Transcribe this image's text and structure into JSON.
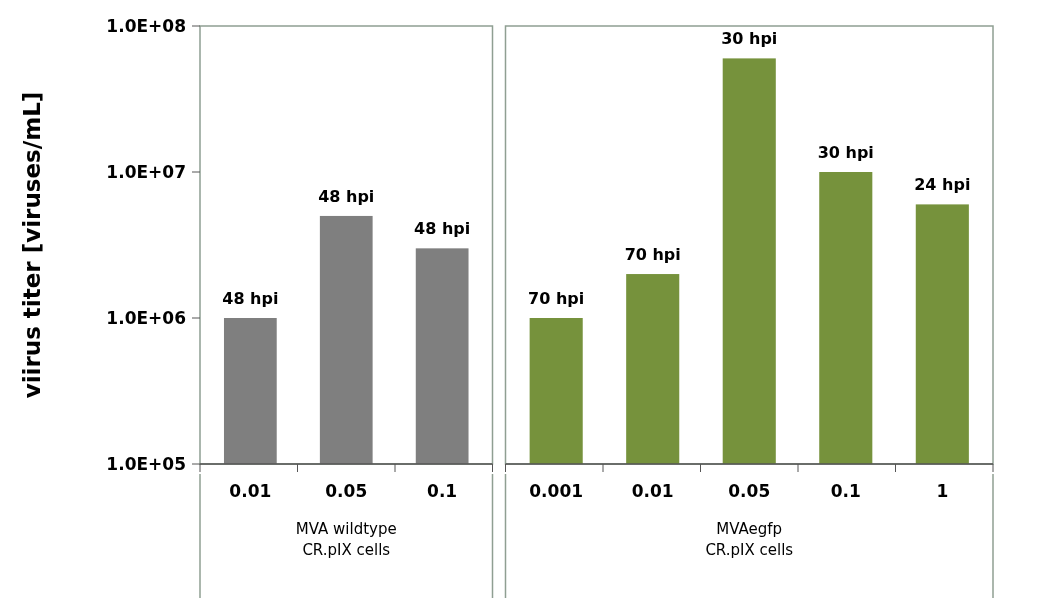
{
  "chart_data": [
    {
      "type": "bar",
      "categories": [
        "0.01",
        "0.05",
        "0.1"
      ],
      "values": [
        1000000,
        5000000,
        3000000
      ],
      "color": "#7f7f7f",
      "log": true,
      "ylim": [
        100000,
        100000000
      ],
      "yticks": [
        {
          "value": 100000,
          "label": "1.0E+05"
        },
        {
          "value": 1000000,
          "label": "1.0E+06"
        },
        {
          "value": 10000000,
          "label": "1.0E+07"
        },
        {
          "value": 100000000,
          "label": "1.0E+08"
        }
      ],
      "ylabel": "viirus titer [viruses/mL]",
      "xlabel": "MVA wildtype\nCR.pIX cells",
      "annotations": [
        {
          "text": "48 hpi",
          "x": "0.01",
          "y": 1000000
        },
        {
          "text": "48 hpi",
          "x": "0.05",
          "y": 5000000
        },
        {
          "text": "48 hpi",
          "x": "0.1",
          "y": 3000000
        }
      ]
    },
    {
      "type": "bar",
      "categories": [
        "0.001",
        "0.01",
        "0.05",
        "0.1",
        "1"
      ],
      "values": [
        1000000,
        2000000,
        60000000,
        10000000,
        6000000
      ],
      "color": "#76923c",
      "log": true,
      "ylim": [
        100000,
        100000000
      ],
      "tick_labels": "x",
      "xlabel": "MVAegfp\nCR.pIX cells",
      "annotations": [
        {
          "text": "70 hpi",
          "x": "0.001",
          "y": 1000000
        },
        {
          "text": "70 hpi",
          "x": "0.01",
          "y": 2000000
        },
        {
          "text": "30 hpi",
          "x": "0.05",
          "y": 60000000
        },
        {
          "text": "30 hpi",
          "x": "0.1",
          "y": 10000000
        },
        {
          "text": "24 hpi",
          "x": "1",
          "y": 6000000
        }
      ]
    }
  ]
}
